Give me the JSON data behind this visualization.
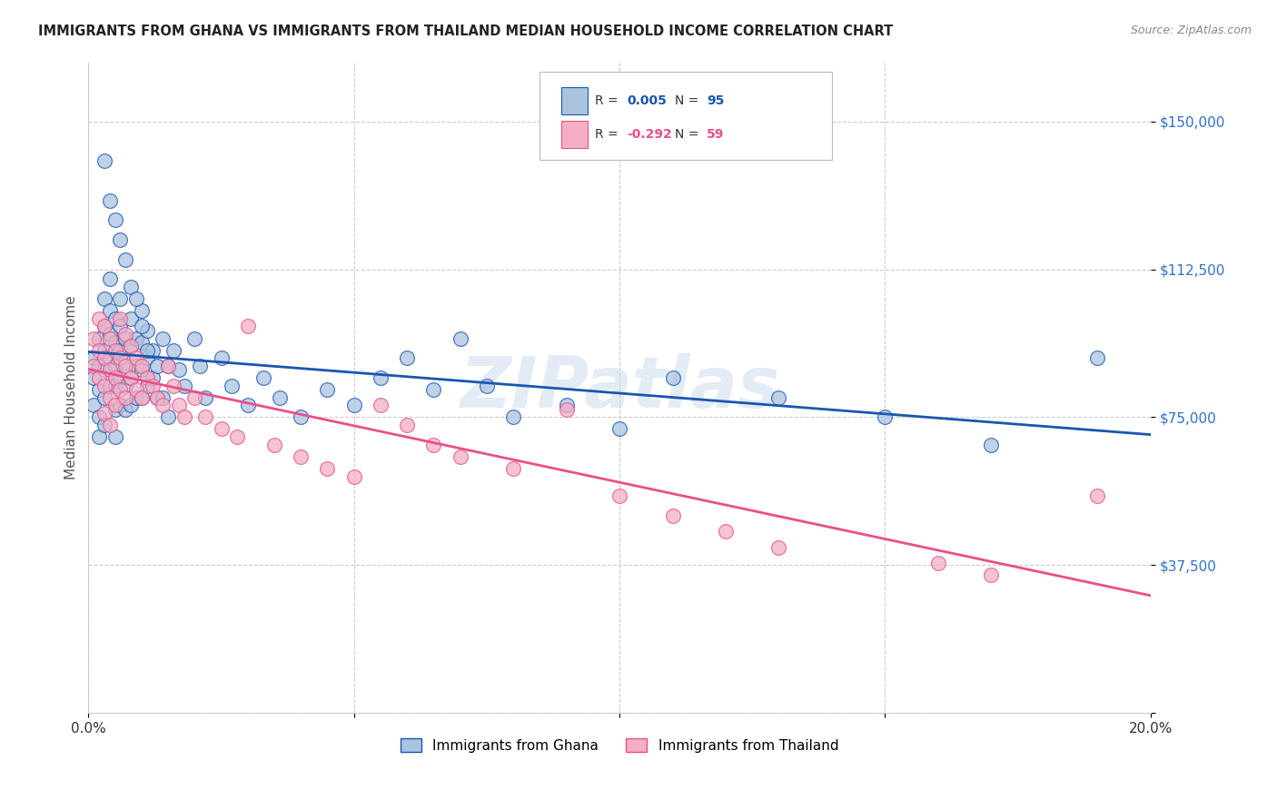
{
  "title": "IMMIGRANTS FROM GHANA VS IMMIGRANTS FROM THAILAND MEDIAN HOUSEHOLD INCOME CORRELATION CHART",
  "source": "Source: ZipAtlas.com",
  "ylabel": "Median Household Income",
  "xlim": [
    0.0,
    0.2
  ],
  "ylim": [
    0,
    165000
  ],
  "yticks": [
    0,
    37500,
    75000,
    112500,
    150000
  ],
  "ytick_labels": [
    "",
    "$37,500",
    "$75,000",
    "$112,500",
    "$150,000"
  ],
  "xticks": [
    0.0,
    0.05,
    0.1,
    0.15,
    0.2
  ],
  "xtick_labels": [
    "0.0%",
    "",
    "",
    "",
    "20.0%"
  ],
  "legend_ghana": "Immigrants from Ghana",
  "legend_thailand": "Immigrants from Thailand",
  "r_ghana": "0.005",
  "n_ghana": "95",
  "r_thailand": "-0.292",
  "n_thailand": "59",
  "color_ghana": "#aac4e0",
  "color_thailand": "#f4afc4",
  "line_color_ghana": "#1a56b0",
  "line_color_thailand": "#e8508a",
  "background_color": "#ffffff",
  "watermark": "ZIPatlas",
  "ghana_x": [
    0.001,
    0.001,
    0.001,
    0.002,
    0.002,
    0.002,
    0.002,
    0.002,
    0.003,
    0.003,
    0.003,
    0.003,
    0.003,
    0.003,
    0.004,
    0.004,
    0.004,
    0.004,
    0.004,
    0.005,
    0.005,
    0.005,
    0.005,
    0.005,
    0.005,
    0.006,
    0.006,
    0.006,
    0.006,
    0.006,
    0.007,
    0.007,
    0.007,
    0.007,
    0.008,
    0.008,
    0.008,
    0.008,
    0.009,
    0.009,
    0.009,
    0.01,
    0.01,
    0.01,
    0.01,
    0.011,
    0.011,
    0.011,
    0.012,
    0.012,
    0.013,
    0.013,
    0.014,
    0.014,
    0.015,
    0.015,
    0.016,
    0.017,
    0.018,
    0.02,
    0.021,
    0.022,
    0.025,
    0.027,
    0.03,
    0.033,
    0.036,
    0.04,
    0.045,
    0.05,
    0.055,
    0.06,
    0.065,
    0.07,
    0.075,
    0.08,
    0.09,
    0.1,
    0.11,
    0.13,
    0.15,
    0.17,
    0.003,
    0.004,
    0.005,
    0.006,
    0.007,
    0.008,
    0.009,
    0.01,
    0.011,
    0.19
  ],
  "ghana_y": [
    90000,
    85000,
    78000,
    95000,
    88000,
    82000,
    75000,
    70000,
    105000,
    98000,
    92000,
    87000,
    80000,
    73000,
    110000,
    102000,
    96000,
    90000,
    83000,
    100000,
    94000,
    88000,
    83000,
    77000,
    70000,
    105000,
    98000,
    92000,
    85000,
    78000,
    95000,
    89000,
    83000,
    77000,
    100000,
    93000,
    85000,
    78000,
    95000,
    88000,
    80000,
    102000,
    94000,
    87000,
    80000,
    97000,
    90000,
    83000,
    92000,
    85000,
    88000,
    80000,
    95000,
    80000,
    88000,
    75000,
    92000,
    87000,
    83000,
    95000,
    88000,
    80000,
    90000,
    83000,
    78000,
    85000,
    80000,
    75000,
    82000,
    78000,
    85000,
    90000,
    82000,
    95000,
    83000,
    75000,
    78000,
    72000,
    85000,
    80000,
    75000,
    68000,
    140000,
    130000,
    125000,
    120000,
    115000,
    108000,
    105000,
    98000,
    92000,
    90000
  ],
  "thailand_x": [
    0.001,
    0.001,
    0.002,
    0.002,
    0.002,
    0.003,
    0.003,
    0.003,
    0.003,
    0.004,
    0.004,
    0.004,
    0.004,
    0.005,
    0.005,
    0.005,
    0.006,
    0.006,
    0.006,
    0.007,
    0.007,
    0.007,
    0.008,
    0.008,
    0.009,
    0.009,
    0.01,
    0.01,
    0.011,
    0.012,
    0.013,
    0.014,
    0.015,
    0.016,
    0.017,
    0.018,
    0.02,
    0.022,
    0.025,
    0.028,
    0.03,
    0.035,
    0.04,
    0.045,
    0.05,
    0.055,
    0.06,
    0.065,
    0.07,
    0.08,
    0.09,
    0.1,
    0.11,
    0.12,
    0.13,
    0.16,
    0.17,
    0.19
  ],
  "thailand_y": [
    95000,
    88000,
    100000,
    92000,
    85000,
    98000,
    90000,
    83000,
    76000,
    95000,
    87000,
    80000,
    73000,
    92000,
    85000,
    78000,
    100000,
    90000,
    82000,
    96000,
    88000,
    80000,
    93000,
    85000,
    90000,
    82000,
    88000,
    80000,
    85000,
    83000,
    80000,
    78000,
    88000,
    83000,
    78000,
    75000,
    80000,
    75000,
    72000,
    70000,
    98000,
    68000,
    65000,
    62000,
    60000,
    78000,
    73000,
    68000,
    65000,
    62000,
    77000,
    55000,
    50000,
    46000,
    42000,
    38000,
    35000,
    55000
  ]
}
